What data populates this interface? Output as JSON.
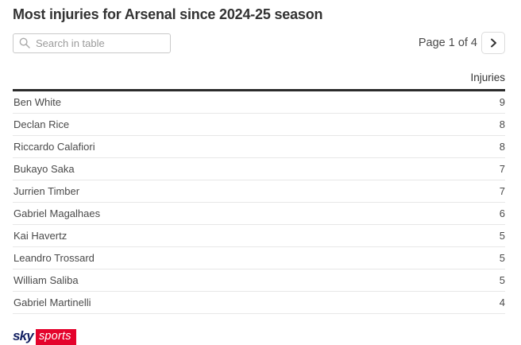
{
  "page_title": "Most injuries for Arsenal since 2024-25 season",
  "toolbar": {
    "search": {
      "placeholder": "Search in table",
      "value": ""
    },
    "pagination": {
      "label": "Page 1 of 4",
      "next_icon": "chevron-right"
    }
  },
  "chart_data": {
    "type": "table",
    "title": "Most injuries for Arsenal since 2024-25 season",
    "columns": [
      "",
      "Injuries"
    ],
    "rows": [
      [
        "Ben White",
        9
      ],
      [
        "Declan Rice",
        8
      ],
      [
        "Riccardo Calafiori",
        8
      ],
      [
        "Bukayo Saka",
        7
      ],
      [
        "Jurrien Timber",
        7
      ],
      [
        "Gabriel Magalhaes",
        6
      ],
      [
        "Kai Havertz",
        5
      ],
      [
        "Leandro Trossard",
        5
      ],
      [
        "William Saliba",
        5
      ],
      [
        "Gabriel Martinelli",
        4
      ]
    ],
    "layout_hints": {
      "value_column_align": "right",
      "header_rule": true,
      "page_shown": 1,
      "pages_total": 4,
      "rows_per_page": 10
    }
  },
  "branding": {
    "sky_text": "sky",
    "sports_text": "sports"
  },
  "colors": {
    "title_text": "#333333",
    "body_text": "#4a4a4a",
    "header_rule": "#2b2b2b",
    "row_border": "#e7e7e7",
    "sky_navy": "#121f61",
    "sports_red": "#e4032c"
  }
}
